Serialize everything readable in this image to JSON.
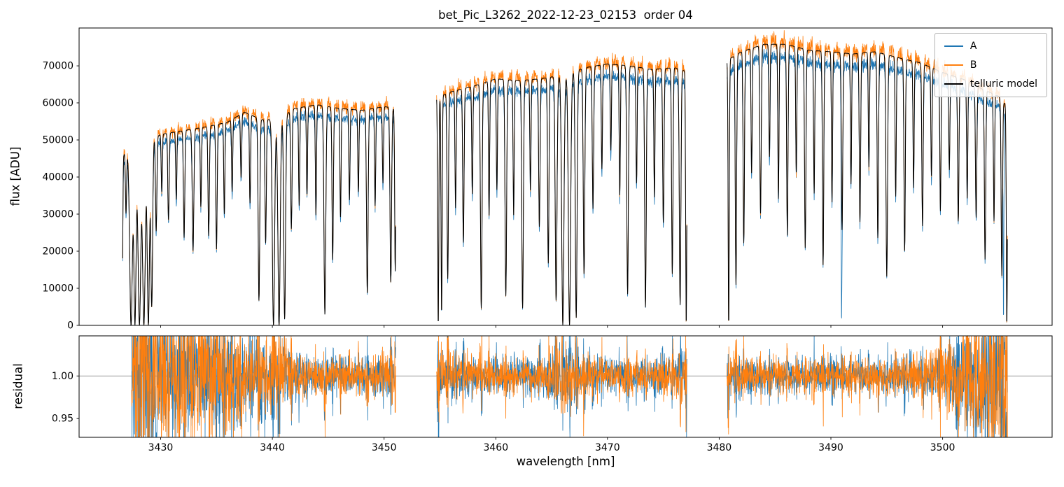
{
  "chart_data": {
    "type": "line",
    "title": "bet_Pic_L3262_2022-12-23_02153  order 04",
    "xlabel": "wavelength [nm]",
    "xlim": [
      3422.7,
      3509.8
    ],
    "xticks": [
      3430,
      3440,
      3450,
      3460,
      3470,
      3480,
      3490,
      3500
    ],
    "panels": {
      "flux": {
        "ylabel": "flux [ADU]",
        "ylim": [
          0,
          80200
        ],
        "yticks": [
          0,
          10000,
          20000,
          30000,
          40000,
          50000,
          60000,
          70000
        ],
        "grid": false
      },
      "residual": {
        "ylabel": "residual",
        "ylim": [
          0.928,
          1.047
        ],
        "yticks": [
          0.95,
          1.0
        ],
        "reference_line": 1.0,
        "reference_line_color": "#888888",
        "grid": false
      }
    },
    "legend": {
      "position": "upper right",
      "entries": [
        {
          "label": "A",
          "color": "#1f77b4"
        },
        {
          "label": "B",
          "color": "#ff7f0e"
        },
        {
          "label": "telluric model",
          "color": "#000000"
        }
      ]
    },
    "series": {
      "A": {
        "color": "#1f77b4",
        "scale": 0.955,
        "noise_rel": 0.011,
        "seed": 101,
        "res_seed": 303
      },
      "B": {
        "color": "#ff7f0e",
        "scale": 1.01,
        "noise_rel": 0.016,
        "seed": 202,
        "res_seed": 404
      },
      "telluric_model": {
        "color": "#000000",
        "scale": 1.0,
        "noise_rel": 0,
        "seed": 1
      }
    },
    "sample_step_nm": 0.02,
    "segments_nm": [
      [
        3426.6,
        3451.05
      ],
      [
        3454.7,
        3477.1
      ],
      [
        3480.7,
        3505.8
      ]
    ],
    "residual_segments_nm": [
      [
        3427.4,
        3451.05
      ],
      [
        3454.7,
        3477.1
      ],
      [
        3480.7,
        3505.8
      ]
    ],
    "continuum_adu": [
      [
        3426.6,
        46000
      ],
      [
        3428,
        48000
      ],
      [
        3430,
        51500
      ],
      [
        3432,
        52500
      ],
      [
        3434,
        53500
      ],
      [
        3436,
        54800
      ],
      [
        3437.5,
        57500
      ],
      [
        3439,
        55500
      ],
      [
        3440.5,
        55500
      ],
      [
        3442,
        58500
      ],
      [
        3444,
        59500
      ],
      [
        3446,
        58500
      ],
      [
        3448,
        58000
      ],
      [
        3450,
        59000
      ],
      [
        3451.1,
        58500
      ],
      [
        3454.7,
        61500
      ],
      [
        3456,
        63000
      ],
      [
        3458,
        64500
      ],
      [
        3460,
        66500
      ],
      [
        3462,
        66000
      ],
      [
        3464,
        66500
      ],
      [
        3466,
        67500
      ],
      [
        3468,
        69500
      ],
      [
        3470,
        70500
      ],
      [
        3472,
        70000
      ],
      [
        3474,
        69000
      ],
      [
        3476,
        69500
      ],
      [
        3477.1,
        68500
      ],
      [
        3480.7,
        71500
      ],
      [
        3482,
        73800
      ],
      [
        3484,
        75800
      ],
      [
        3486,
        75800
      ],
      [
        3488,
        74200
      ],
      [
        3490,
        73800
      ],
      [
        3492,
        73200
      ],
      [
        3494,
        73800
      ],
      [
        3496,
        72200
      ],
      [
        3498,
        70800
      ],
      [
        3500,
        68200
      ],
      [
        3502,
        66200
      ],
      [
        3503.5,
        63800
      ],
      [
        3505,
        61800
      ],
      [
        3505.8,
        59000
      ]
    ],
    "telluric_lines": [
      [
        3426.55,
        1.0,
        0.05
      ],
      [
        3426.9,
        0.35,
        0.05
      ],
      [
        3427.35,
        1.0,
        0.12
      ],
      [
        3427.7,
        1.0,
        0.1
      ],
      [
        3428.1,
        1.0,
        0.12
      ],
      [
        3428.5,
        1.0,
        0.12
      ],
      [
        3428.9,
        1.0,
        0.1
      ],
      [
        3429.2,
        0.9,
        0.08
      ],
      [
        3429.6,
        0.5,
        0.06
      ],
      [
        3430.1,
        0.3,
        0.05
      ],
      [
        3430.7,
        0.45,
        0.06
      ],
      [
        3431.4,
        0.35,
        0.05
      ],
      [
        3432.1,
        0.55,
        0.06
      ],
      [
        3432.9,
        0.62,
        0.07
      ],
      [
        3433.6,
        0.4,
        0.05
      ],
      [
        3434.3,
        0.55,
        0.06
      ],
      [
        3435.0,
        0.62,
        0.06
      ],
      [
        3435.7,
        0.45,
        0.05
      ],
      [
        3436.4,
        0.35,
        0.05
      ],
      [
        3437.2,
        0.3,
        0.05
      ],
      [
        3438.0,
        0.42,
        0.05
      ],
      [
        3438.8,
        0.88,
        0.07
      ],
      [
        3439.4,
        0.6,
        0.06
      ],
      [
        3440.1,
        1.0,
        0.1
      ],
      [
        3440.6,
        1.0,
        0.1
      ],
      [
        3441.1,
        0.97,
        0.08
      ],
      [
        3441.7,
        0.55,
        0.06
      ],
      [
        3442.4,
        0.45,
        0.05
      ],
      [
        3443.1,
        0.4,
        0.05
      ],
      [
        3443.9,
        0.5,
        0.05
      ],
      [
        3444.7,
        0.95,
        0.08
      ],
      [
        3445.4,
        0.7,
        0.06
      ],
      [
        3446.1,
        0.5,
        0.05
      ],
      [
        3446.9,
        0.42,
        0.05
      ],
      [
        3447.7,
        0.38,
        0.05
      ],
      [
        3448.5,
        0.85,
        0.07
      ],
      [
        3449.2,
        0.45,
        0.05
      ],
      [
        3449.9,
        0.35,
        0.05
      ],
      [
        3450.6,
        0.8,
        0.07
      ],
      [
        3451.0,
        0.75,
        0.05
      ],
      [
        3454.85,
        1.0,
        0.05
      ],
      [
        3455.15,
        0.95,
        0.05
      ],
      [
        3455.7,
        0.8,
        0.06
      ],
      [
        3456.4,
        0.5,
        0.05
      ],
      [
        3457.1,
        0.65,
        0.06
      ],
      [
        3457.9,
        0.45,
        0.05
      ],
      [
        3458.7,
        0.93,
        0.07
      ],
      [
        3459.4,
        0.55,
        0.05
      ],
      [
        3460.1,
        0.45,
        0.05
      ],
      [
        3460.9,
        0.88,
        0.07
      ],
      [
        3461.6,
        0.55,
        0.05
      ],
      [
        3462.4,
        0.93,
        0.07
      ],
      [
        3463.1,
        0.45,
        0.05
      ],
      [
        3463.9,
        0.6,
        0.06
      ],
      [
        3464.7,
        0.75,
        0.06
      ],
      [
        3465.4,
        0.9,
        0.08
      ],
      [
        3466.0,
        1.0,
        0.1
      ],
      [
        3466.6,
        1.0,
        0.1
      ],
      [
        3467.2,
        0.97,
        0.08
      ],
      [
        3467.9,
        0.8,
        0.07
      ],
      [
        3468.7,
        0.55,
        0.06
      ],
      [
        3469.5,
        0.4,
        0.05
      ],
      [
        3470.3,
        0.33,
        0.05
      ],
      [
        3471.1,
        0.5,
        0.05
      ],
      [
        3471.8,
        0.88,
        0.07
      ],
      [
        3472.6,
        0.45,
        0.05
      ],
      [
        3473.4,
        0.93,
        0.07
      ],
      [
        3474.2,
        0.5,
        0.05
      ],
      [
        3475.0,
        0.6,
        0.06
      ],
      [
        3475.8,
        0.8,
        0.06
      ],
      [
        3476.5,
        0.92,
        0.07
      ],
      [
        3477.05,
        1.0,
        0.05
      ],
      [
        3480.85,
        1.0,
        0.05
      ],
      [
        3481.5,
        0.85,
        0.06
      ],
      [
        3482.2,
        0.7,
        0.06
      ],
      [
        3482.9,
        0.45,
        0.05
      ],
      [
        3483.7,
        0.6,
        0.06
      ],
      [
        3484.5,
        0.4,
        0.05
      ],
      [
        3485.3,
        0.55,
        0.05
      ],
      [
        3486.1,
        0.68,
        0.06
      ],
      [
        3486.9,
        0.45,
        0.05
      ],
      [
        3487.7,
        0.72,
        0.06
      ],
      [
        3488.5,
        0.52,
        0.05
      ],
      [
        3489.3,
        0.78,
        0.06
      ],
      [
        3490.1,
        0.55,
        0.05
      ],
      [
        3491.0,
        0.65,
        0.06
      ],
      [
        3491.8,
        0.48,
        0.05
      ],
      [
        3492.6,
        0.62,
        0.06
      ],
      [
        3493.4,
        0.42,
        0.05
      ],
      [
        3494.2,
        0.68,
        0.06
      ],
      [
        3495.0,
        0.82,
        0.07
      ],
      [
        3495.8,
        0.52,
        0.05
      ],
      [
        3496.6,
        0.72,
        0.06
      ],
      [
        3497.4,
        0.48,
        0.05
      ],
      [
        3498.2,
        0.62,
        0.06
      ],
      [
        3499.0,
        0.42,
        0.05
      ],
      [
        3499.8,
        0.55,
        0.05
      ],
      [
        3500.6,
        0.38,
        0.05
      ],
      [
        3501.4,
        0.58,
        0.06
      ],
      [
        3502.2,
        0.48,
        0.05
      ],
      [
        3503.0,
        0.55,
        0.06
      ],
      [
        3503.8,
        0.72,
        0.06
      ],
      [
        3504.6,
        0.55,
        0.05
      ],
      [
        3505.3,
        0.78,
        0.06
      ],
      [
        3505.75,
        1.0,
        0.05
      ]
    ],
    "a_only_lines": [
      [
        3490.95,
        1.0,
        0.03
      ],
      [
        3505.45,
        1.0,
        0.03
      ]
    ],
    "residual_noise_base": [
      [
        3427.4,
        0.03
      ],
      [
        3429,
        0.04
      ],
      [
        3431,
        0.042
      ],
      [
        3433,
        0.038
      ],
      [
        3435,
        0.034
      ],
      [
        3437,
        0.028
      ],
      [
        3439,
        0.022
      ],
      [
        3441,
        0.018
      ],
      [
        3443,
        0.012
      ],
      [
        3445,
        0.01
      ],
      [
        3447,
        0.01
      ],
      [
        3449,
        0.011
      ],
      [
        3451,
        0.013
      ],
      [
        3454.8,
        0.016
      ],
      [
        3456,
        0.013
      ],
      [
        3458,
        0.011
      ],
      [
        3460,
        0.01
      ],
      [
        3462,
        0.01
      ],
      [
        3464,
        0.011
      ],
      [
        3466,
        0.016
      ],
      [
        3468,
        0.013
      ],
      [
        3470,
        0.01
      ],
      [
        3472,
        0.01
      ],
      [
        3474,
        0.01
      ],
      [
        3476,
        0.013
      ],
      [
        3477.1,
        0.015
      ],
      [
        3480.7,
        0.014
      ],
      [
        3482,
        0.011
      ],
      [
        3484,
        0.01
      ],
      [
        3486,
        0.01
      ],
      [
        3488,
        0.01
      ],
      [
        3490,
        0.011
      ],
      [
        3492,
        0.01
      ],
      [
        3494,
        0.01
      ],
      [
        3496,
        0.011
      ],
      [
        3498,
        0.013
      ],
      [
        3500,
        0.018
      ],
      [
        3501.5,
        0.028
      ],
      [
        3503,
        0.038
      ],
      [
        3504.5,
        0.048
      ],
      [
        3505.8,
        0.055
      ]
    ]
  }
}
